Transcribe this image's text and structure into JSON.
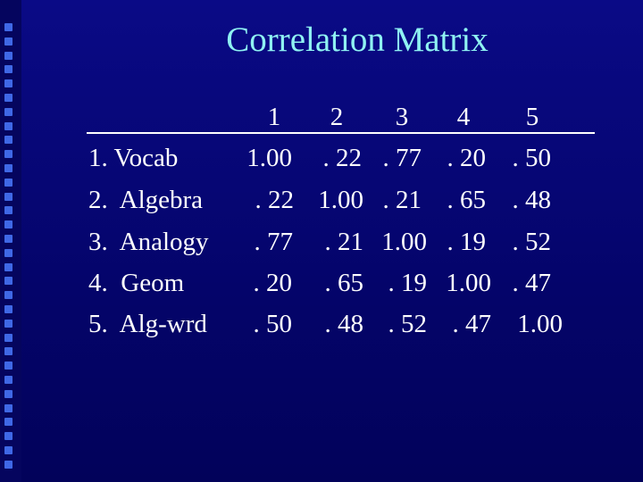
{
  "title": "Correlation Matrix",
  "matrix": {
    "column_headers": [
      "1",
      "2",
      "3",
      "4",
      "5"
    ],
    "rows": [
      {
        "label": "1. Vocab",
        "values": [
          "1.00",
          ". 22",
          ". 77",
          ". 20",
          ". 50"
        ]
      },
      {
        "label": "2.  Algebra",
        "values": [
          ". 22",
          "1.00",
          ". 21",
          ". 65",
          ". 48"
        ]
      },
      {
        "label": "3.  Analogy",
        "values": [
          ". 77",
          ". 21",
          "1.00",
          ". 19",
          ". 52"
        ]
      },
      {
        "label": "4.  Geom",
        "values": [
          ". 20",
          ". 65",
          ". 19",
          "1.00",
          ". 47"
        ]
      },
      {
        "label": "5.  Alg-wrd",
        "values": [
          ". 50",
          ". 48",
          ". 52",
          ". 47",
          "1.00"
        ]
      }
    ]
  },
  "colors": {
    "background": "#0a0a86",
    "title": "#8ff2f2",
    "text": "#ffffff",
    "bullet": "#3f68e6"
  }
}
